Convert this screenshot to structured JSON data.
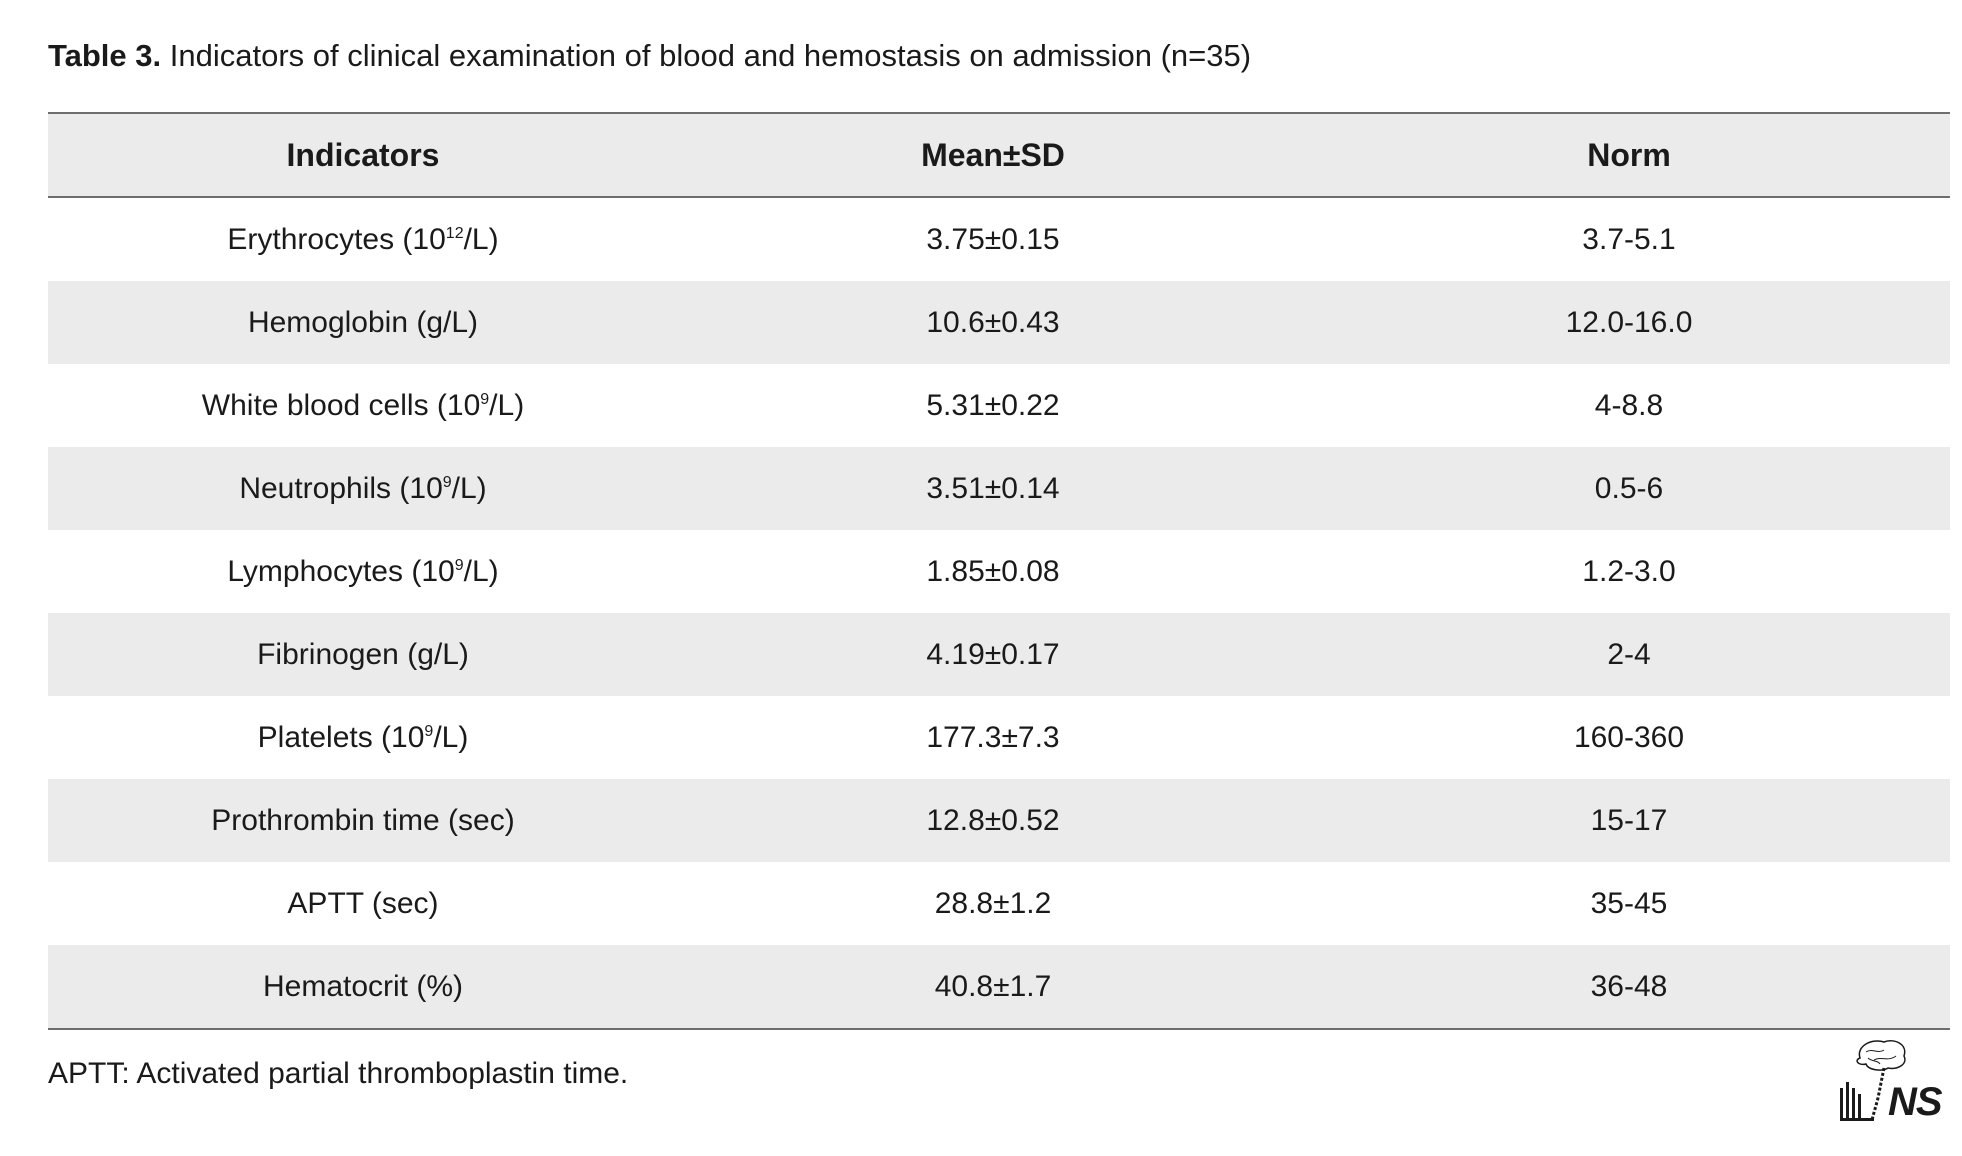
{
  "caption": {
    "label": "Table 3.",
    "text": "Indicators of clinical examination of blood and hemostasis on admission (n=35)"
  },
  "table": {
    "headers": [
      "Indicators",
      "Mean±SD",
      "Norm"
    ],
    "rows": [
      {
        "indicator": "Erythrocytes (10",
        "sup": "12",
        "unit": "/L)",
        "mean_sd": "3.75±0.15",
        "norm": "3.7-5.1"
      },
      {
        "indicator": "Hemoglobin (g/L)",
        "sup": "",
        "unit": "",
        "mean_sd": "10.6±0.43",
        "norm": "12.0-16.0"
      },
      {
        "indicator": "White blood cells (10",
        "sup": "9",
        "unit": "/L)",
        "mean_sd": "5.31±0.22",
        "norm": "4-8.8"
      },
      {
        "indicator": "Neutrophils (10",
        "sup": "9",
        "unit": "/L)",
        "mean_sd": "3.51±0.14",
        "norm": "0.5-6"
      },
      {
        "indicator": "Lymphocytes (10",
        "sup": "9",
        "unit": "/L)",
        "mean_sd": "1.85±0.08",
        "norm": "1.2-3.0"
      },
      {
        "indicator": "Fibrinogen (g/L)",
        "sup": "",
        "unit": "",
        "mean_sd": "4.19±0.17",
        "norm": "2-4"
      },
      {
        "indicator": "Platelets (10",
        "sup": "9",
        "unit": "/L)",
        "mean_sd": "177.3±7.3",
        "norm": "160-360"
      },
      {
        "indicator": "Prothrombin time (sec)",
        "sup": "",
        "unit": "",
        "mean_sd": "12.8±0.52",
        "norm": "15-17"
      },
      {
        "indicator": "APTT (sec)",
        "sup": "",
        "unit": "",
        "mean_sd": "28.8±1.2",
        "norm": "35-45"
      },
      {
        "indicator": "Hematocrit (%)",
        "sup": "",
        "unit": "",
        "mean_sd": "40.8±1.7",
        "norm": "36-48"
      }
    ]
  },
  "footnote": "APTT: Activated partial thromboplastin time.",
  "logo": {
    "text": "NS",
    "icon": "brain-spine-logo-icon"
  }
}
